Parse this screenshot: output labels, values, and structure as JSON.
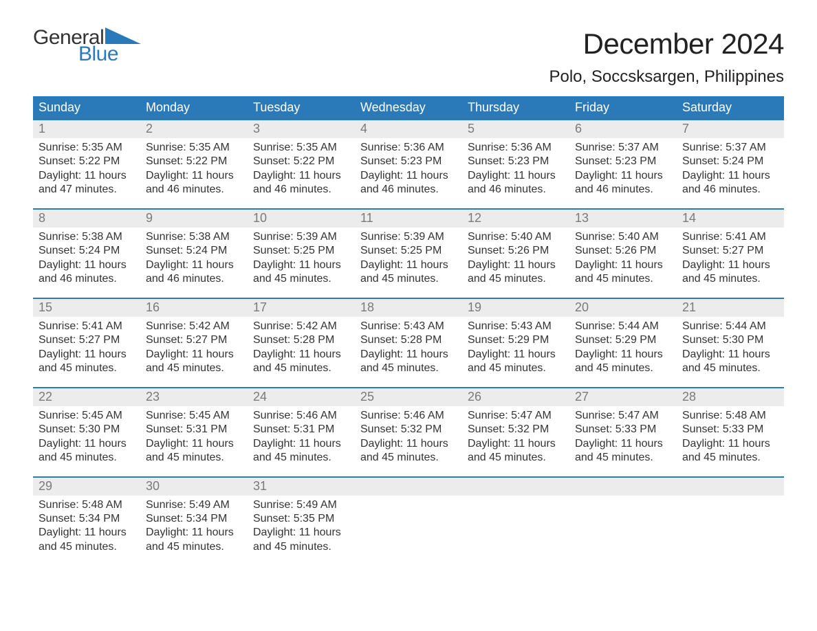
{
  "logo": {
    "text_top": "General",
    "text_bottom": "Blue",
    "triangle_color": "#2a7ab9"
  },
  "header": {
    "month_title": "December 2024",
    "location": "Polo, Soccsksargen, Philippines"
  },
  "calendar": {
    "weekdays": [
      "Sunday",
      "Monday",
      "Tuesday",
      "Wednesday",
      "Thursday",
      "Friday",
      "Saturday"
    ],
    "header_bg": "#2a7ab9",
    "header_fg": "#ffffff",
    "daynum_bg": "#ececec",
    "daynum_fg": "#7a7a7a",
    "body_fg": "#333333",
    "week_border": "#2a7ab9",
    "font_size_header": 18,
    "font_size_daynum": 18,
    "font_size_body": 16,
    "weeks": [
      [
        {
          "n": "1",
          "sunrise": "Sunrise: 5:35 AM",
          "sunset": "Sunset: 5:22 PM",
          "day1": "Daylight: 11 hours",
          "day2": "and 47 minutes."
        },
        {
          "n": "2",
          "sunrise": "Sunrise: 5:35 AM",
          "sunset": "Sunset: 5:22 PM",
          "day1": "Daylight: 11 hours",
          "day2": "and 46 minutes."
        },
        {
          "n": "3",
          "sunrise": "Sunrise: 5:35 AM",
          "sunset": "Sunset: 5:22 PM",
          "day1": "Daylight: 11 hours",
          "day2": "and 46 minutes."
        },
        {
          "n": "4",
          "sunrise": "Sunrise: 5:36 AM",
          "sunset": "Sunset: 5:23 PM",
          "day1": "Daylight: 11 hours",
          "day2": "and 46 minutes."
        },
        {
          "n": "5",
          "sunrise": "Sunrise: 5:36 AM",
          "sunset": "Sunset: 5:23 PM",
          "day1": "Daylight: 11 hours",
          "day2": "and 46 minutes."
        },
        {
          "n": "6",
          "sunrise": "Sunrise: 5:37 AM",
          "sunset": "Sunset: 5:23 PM",
          "day1": "Daylight: 11 hours",
          "day2": "and 46 minutes."
        },
        {
          "n": "7",
          "sunrise": "Sunrise: 5:37 AM",
          "sunset": "Sunset: 5:24 PM",
          "day1": "Daylight: 11 hours",
          "day2": "and 46 minutes."
        }
      ],
      [
        {
          "n": "8",
          "sunrise": "Sunrise: 5:38 AM",
          "sunset": "Sunset: 5:24 PM",
          "day1": "Daylight: 11 hours",
          "day2": "and 46 minutes."
        },
        {
          "n": "9",
          "sunrise": "Sunrise: 5:38 AM",
          "sunset": "Sunset: 5:24 PM",
          "day1": "Daylight: 11 hours",
          "day2": "and 46 minutes."
        },
        {
          "n": "10",
          "sunrise": "Sunrise: 5:39 AM",
          "sunset": "Sunset: 5:25 PM",
          "day1": "Daylight: 11 hours",
          "day2": "and 45 minutes."
        },
        {
          "n": "11",
          "sunrise": "Sunrise: 5:39 AM",
          "sunset": "Sunset: 5:25 PM",
          "day1": "Daylight: 11 hours",
          "day2": "and 45 minutes."
        },
        {
          "n": "12",
          "sunrise": "Sunrise: 5:40 AM",
          "sunset": "Sunset: 5:26 PM",
          "day1": "Daylight: 11 hours",
          "day2": "and 45 minutes."
        },
        {
          "n": "13",
          "sunrise": "Sunrise: 5:40 AM",
          "sunset": "Sunset: 5:26 PM",
          "day1": "Daylight: 11 hours",
          "day2": "and 45 minutes."
        },
        {
          "n": "14",
          "sunrise": "Sunrise: 5:41 AM",
          "sunset": "Sunset: 5:27 PM",
          "day1": "Daylight: 11 hours",
          "day2": "and 45 minutes."
        }
      ],
      [
        {
          "n": "15",
          "sunrise": "Sunrise: 5:41 AM",
          "sunset": "Sunset: 5:27 PM",
          "day1": "Daylight: 11 hours",
          "day2": "and 45 minutes."
        },
        {
          "n": "16",
          "sunrise": "Sunrise: 5:42 AM",
          "sunset": "Sunset: 5:27 PM",
          "day1": "Daylight: 11 hours",
          "day2": "and 45 minutes."
        },
        {
          "n": "17",
          "sunrise": "Sunrise: 5:42 AM",
          "sunset": "Sunset: 5:28 PM",
          "day1": "Daylight: 11 hours",
          "day2": "and 45 minutes."
        },
        {
          "n": "18",
          "sunrise": "Sunrise: 5:43 AM",
          "sunset": "Sunset: 5:28 PM",
          "day1": "Daylight: 11 hours",
          "day2": "and 45 minutes."
        },
        {
          "n": "19",
          "sunrise": "Sunrise: 5:43 AM",
          "sunset": "Sunset: 5:29 PM",
          "day1": "Daylight: 11 hours",
          "day2": "and 45 minutes."
        },
        {
          "n": "20",
          "sunrise": "Sunrise: 5:44 AM",
          "sunset": "Sunset: 5:29 PM",
          "day1": "Daylight: 11 hours",
          "day2": "and 45 minutes."
        },
        {
          "n": "21",
          "sunrise": "Sunrise: 5:44 AM",
          "sunset": "Sunset: 5:30 PM",
          "day1": "Daylight: 11 hours",
          "day2": "and 45 minutes."
        }
      ],
      [
        {
          "n": "22",
          "sunrise": "Sunrise: 5:45 AM",
          "sunset": "Sunset: 5:30 PM",
          "day1": "Daylight: 11 hours",
          "day2": "and 45 minutes."
        },
        {
          "n": "23",
          "sunrise": "Sunrise: 5:45 AM",
          "sunset": "Sunset: 5:31 PM",
          "day1": "Daylight: 11 hours",
          "day2": "and 45 minutes."
        },
        {
          "n": "24",
          "sunrise": "Sunrise: 5:46 AM",
          "sunset": "Sunset: 5:31 PM",
          "day1": "Daylight: 11 hours",
          "day2": "and 45 minutes."
        },
        {
          "n": "25",
          "sunrise": "Sunrise: 5:46 AM",
          "sunset": "Sunset: 5:32 PM",
          "day1": "Daylight: 11 hours",
          "day2": "and 45 minutes."
        },
        {
          "n": "26",
          "sunrise": "Sunrise: 5:47 AM",
          "sunset": "Sunset: 5:32 PM",
          "day1": "Daylight: 11 hours",
          "day2": "and 45 minutes."
        },
        {
          "n": "27",
          "sunrise": "Sunrise: 5:47 AM",
          "sunset": "Sunset: 5:33 PM",
          "day1": "Daylight: 11 hours",
          "day2": "and 45 minutes."
        },
        {
          "n": "28",
          "sunrise": "Sunrise: 5:48 AM",
          "sunset": "Sunset: 5:33 PM",
          "day1": "Daylight: 11 hours",
          "day2": "and 45 minutes."
        }
      ],
      [
        {
          "n": "29",
          "sunrise": "Sunrise: 5:48 AM",
          "sunset": "Sunset: 5:34 PM",
          "day1": "Daylight: 11 hours",
          "day2": "and 45 minutes."
        },
        {
          "n": "30",
          "sunrise": "Sunrise: 5:49 AM",
          "sunset": "Sunset: 5:34 PM",
          "day1": "Daylight: 11 hours",
          "day2": "and 45 minutes."
        },
        {
          "n": "31",
          "sunrise": "Sunrise: 5:49 AM",
          "sunset": "Sunset: 5:35 PM",
          "day1": "Daylight: 11 hours",
          "day2": "and 45 minutes."
        },
        null,
        null,
        null,
        null
      ]
    ]
  }
}
